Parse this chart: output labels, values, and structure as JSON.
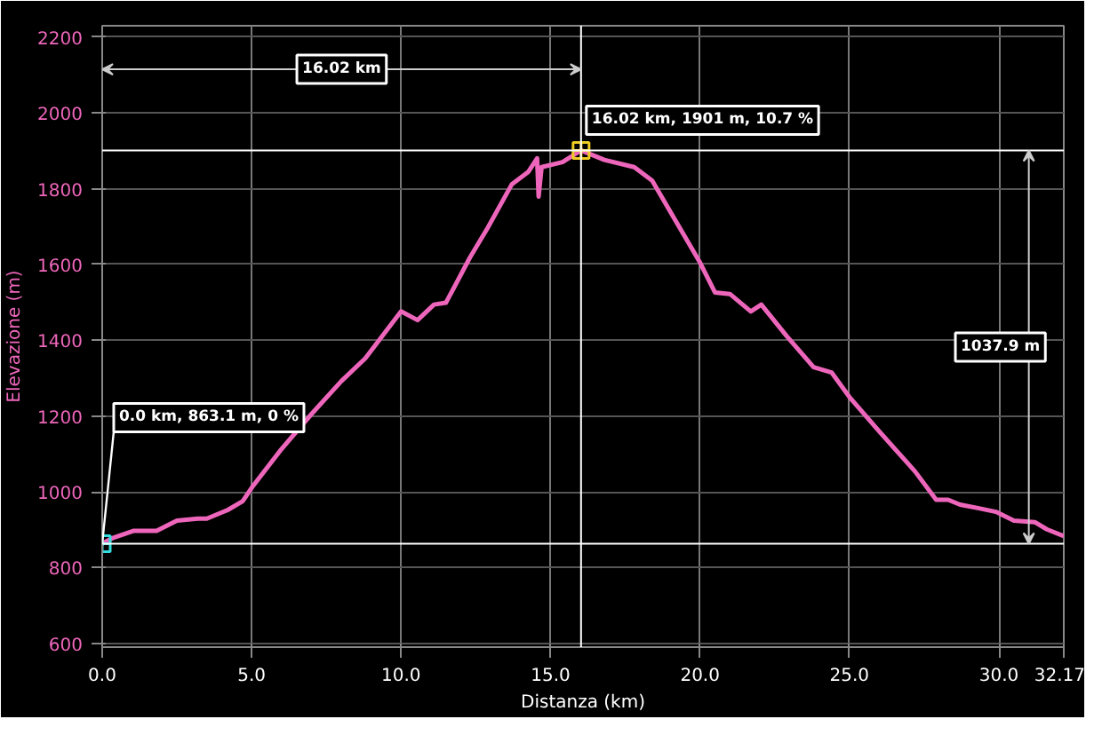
{
  "chart_data": {
    "type": "line",
    "xlabel": "Distanza (km)",
    "ylabel": "Elevazione (m)",
    "x": [
      0,
      0.35,
      1.06,
      1.82,
      2.5,
      3.2,
      3.5,
      4.2,
      4.7,
      5.05,
      6.0,
      7.0,
      8.0,
      8.8,
      10.0,
      10.55,
      11.1,
      11.5,
      12.3,
      12.9,
      13.7,
      14.25,
      14.55,
      14.6,
      14.7,
      15.4,
      16.02,
      16.8,
      17.8,
      18.4,
      20.0,
      20.5,
      21.0,
      21.7,
      22.05,
      22.9,
      23.8,
      24.4,
      25.0,
      26.0,
      27.2,
      27.9,
      28.3,
      28.7,
      29.3,
      29.9,
      30.5,
      31.2,
      31.6,
      32.17
    ],
    "series": [
      {
        "color": "#ee66bb",
        "values": [
          863.1,
          878,
          897,
          897,
          924,
          929,
          929,
          952,
          975,
          1016,
          1113,
          1205,
          1292,
          1352,
          1476,
          1453,
          1494,
          1499,
          1618,
          1697,
          1811,
          1844,
          1880,
          1779,
          1857,
          1870,
          1901,
          1876,
          1857,
          1821,
          1605,
          1526,
          1522,
          1476,
          1494,
          1411,
          1329,
          1315,
          1250,
          1159,
          1053,
          979,
          979,
          966,
          957,
          947,
          924,
          920,
          901,
          883
        ]
      }
    ],
    "xlim": [
      0,
      32.17
    ],
    "ylim": [
      590,
      2230
    ],
    "xticks": [
      {
        "value": 0,
        "label": "0.0"
      },
      {
        "value": 5,
        "label": "5.0"
      },
      {
        "value": 10,
        "label": "10.0"
      },
      {
        "value": 15,
        "label": "15.0"
      },
      {
        "value": 20,
        "label": "20.0"
      },
      {
        "value": 25,
        "label": "25.0"
      },
      {
        "value": 30,
        "label": "30.0"
      },
      32.17
    ],
    "yticks": [
      600,
      800,
      1000,
      1200,
      1400,
      1600,
      1800,
      2000,
      2200
    ],
    "grid": true,
    "marker": "none",
    "line_style": "solid",
    "ref_lines": [
      {
        "axis": "y",
        "value": 1901,
        "color": "#ffffff"
      },
      {
        "axis": "y",
        "value": 863.1,
        "color": "#ffffff"
      },
      {
        "axis": "x",
        "value": 16.02,
        "color": "#ffffff"
      }
    ],
    "annotations": [
      {
        "text": "0.0 km, 863.1 m, 0 %",
        "x": 0,
        "y": 863.1
      },
      {
        "text": "16.02 km, 1901 m, 10.7 %",
        "x": 16.02,
        "y": 1901
      },
      {
        "text": "16.02 km",
        "x": 16.02,
        "y": 2115
      },
      {
        "text": "1037.9 m",
        "x": 31.0,
        "y": 1901
      }
    ]
  }
}
